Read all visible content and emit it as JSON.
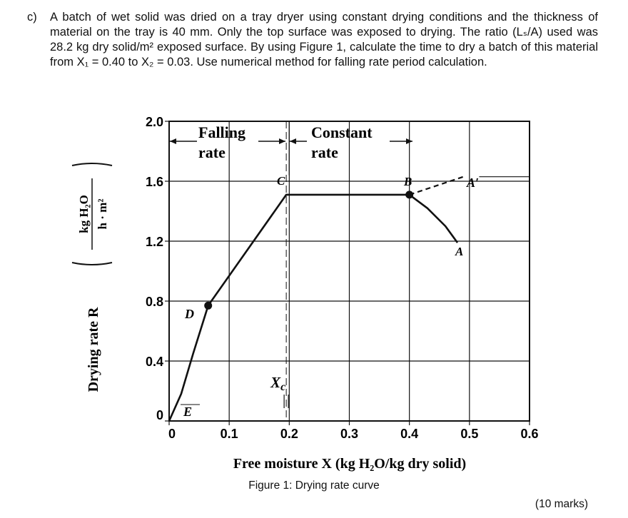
{
  "question": {
    "label": "c)",
    "text": "A batch of wet solid was dried on a tray dryer using constant drying conditions and the thickness of material on the tray is 40 mm. Only the top surface was exposed to drying. The ratio (Lₛ/A) used was 28.2 kg dry solid/m² exposed surface. By using Figure 1, calculate the time to dry a batch of this material from X₁ = 0.40 to X₂ = 0.03. Use numerical method for falling rate period calculation."
  },
  "figure_caption": "Figure 1: Drying rate curve",
  "marks": "(10 marks)",
  "chart_data": {
    "type": "line",
    "xlabel": "Free moisture X (kg H₂O/kg dry solid)",
    "ylabel_main": "Drying rate R",
    "ylabel_units_num": "kg H₂O",
    "ylabel_units_den": "h · m²",
    "xlim": [
      0,
      0.6
    ],
    "ylim": [
      0,
      2.0
    ],
    "x_ticks": [
      0,
      0.1,
      0.2,
      0.3,
      0.4,
      0.5,
      0.6
    ],
    "x_tick_labels": [
      "0",
      "0.1",
      "0.2",
      "0.3",
      "0.4",
      "0.5",
      "0.6"
    ],
    "y_ticks": [
      0,
      0.4,
      0.8,
      1.2,
      1.6,
      2.0
    ],
    "y_tick_labels": [
      "0",
      "0.4",
      "0.8",
      "1.2",
      "1.6",
      "2.0"
    ],
    "grid": true,
    "curve": [
      {
        "x": 0.0,
        "y": 0.0
      },
      {
        "x": 0.02,
        "y": 0.18
      },
      {
        "x": 0.04,
        "y": 0.45
      },
      {
        "x": 0.065,
        "y": 0.77
      },
      {
        "x": 0.195,
        "y": 1.51
      },
      {
        "x": 0.4,
        "y": 1.51
      },
      {
        "x": 0.43,
        "y": 1.42
      },
      {
        "x": 0.46,
        "y": 1.3
      },
      {
        "x": 0.48,
        "y": 1.19
      }
    ],
    "dashed_segment": [
      {
        "x": 0.4,
        "y": 1.51
      },
      {
        "x": 0.49,
        "y": 1.63
      }
    ],
    "points": [
      {
        "label": "D",
        "x": 0.065,
        "y": 0.77
      },
      {
        "label": "B",
        "x": 0.4,
        "y": 1.51
      }
    ],
    "annotations": {
      "C": "C",
      "B": "B",
      "A": "A",
      "A_prime": "A′",
      "D": "D",
      "E": "E",
      "Xc": "Xc",
      "falling_top": "Falling",
      "falling_bottom": "rate",
      "constant_top": "Constant",
      "constant_bottom": "rate"
    },
    "critical_moisture_x": 0.195
  }
}
